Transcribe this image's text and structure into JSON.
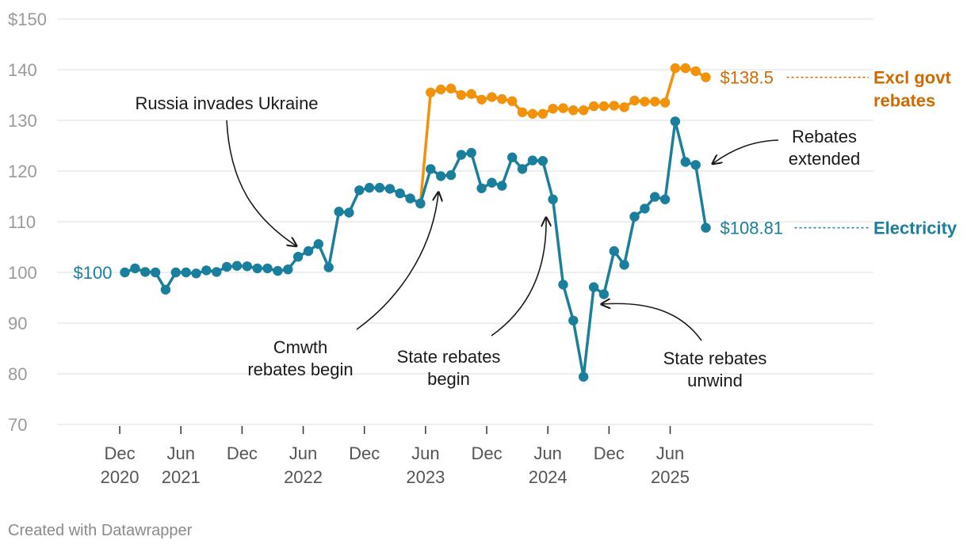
{
  "chart_data": {
    "type": "line",
    "title": "",
    "xlabel": "",
    "ylabel": "",
    "ylim": [
      70,
      150
    ],
    "y_ticks": [
      {
        "value": 150,
        "label": "$150"
      },
      {
        "value": 140,
        "label": "140"
      },
      {
        "value": 130,
        "label": "130"
      },
      {
        "value": 120,
        "label": "120"
      },
      {
        "value": 110,
        "label": "110"
      },
      {
        "value": 100,
        "label": "100"
      },
      {
        "value": 90,
        "label": "90"
      },
      {
        "value": 80,
        "label": "80"
      },
      {
        "value": 70,
        "label": "70"
      }
    ],
    "x_ticks": [
      {
        "index": -0.5,
        "line1": "Dec",
        "line2": "2020"
      },
      {
        "index": 5.5,
        "line1": "Jun",
        "line2": "2021"
      },
      {
        "index": 11.5,
        "line1": "Dec",
        "line2": ""
      },
      {
        "index": 17.5,
        "line1": "Jun",
        "line2": "2022"
      },
      {
        "index": 23.5,
        "line1": "Dec",
        "line2": ""
      },
      {
        "index": 29.5,
        "line1": "Jun",
        "line2": "2023"
      },
      {
        "index": 35.5,
        "line1": "Dec",
        "line2": ""
      },
      {
        "index": 41.5,
        "line1": "Jun",
        "line2": "2024"
      },
      {
        "index": 47.5,
        "line1": "Dec",
        "line2": ""
      },
      {
        "index": 53.5,
        "line1": "Jun",
        "line2": "2025"
      }
    ],
    "series": [
      {
        "name": "Electricity",
        "color": "#1a7f9c",
        "start_index": 0,
        "end_label": "$108.81",
        "start_label": "$100",
        "values": [
          100.0,
          100.8,
          100.1,
          100.0,
          96.6,
          100.0,
          100.0,
          99.8,
          100.4,
          100.1,
          101.1,
          101.3,
          101.2,
          100.8,
          100.8,
          100.3,
          100.6,
          103.1,
          104.2,
          105.6,
          101.0,
          112.0,
          111.8,
          116.2,
          116.7,
          116.7,
          116.5,
          115.6,
          114.6,
          113.6,
          120.4,
          119.0,
          119.2,
          123.2,
          123.6,
          116.6,
          117.7,
          117.1,
          122.7,
          120.4,
          122.1,
          122.0,
          114.4,
          97.6,
          90.5,
          79.4,
          97.1,
          95.7,
          104.2,
          101.5,
          111.0,
          112.6,
          114.9,
          114.4,
          129.8,
          121.8,
          121.2,
          108.81
        ]
      },
      {
        "name": "Excl govt rebates",
        "name_lines": [
          "Excl govt",
          "rebates"
        ],
        "color": "#f2910a",
        "label_color": "#d06a00",
        "start_index": 29,
        "end_label": "$138.5",
        "values": [
          113.6,
          135.5,
          136.1,
          136.3,
          135.0,
          135.2,
          134.1,
          134.6,
          134.2,
          133.8,
          131.6,
          131.3,
          131.3,
          132.3,
          132.4,
          132.0,
          132.0,
          132.8,
          132.8,
          132.9,
          132.6,
          133.9,
          133.7,
          133.7,
          133.5,
          140.3,
          140.3,
          139.7,
          138.5
        ]
      }
    ],
    "annotations": [
      {
        "id": "russia",
        "lines": [
          "Russia invades Ukraine"
        ]
      },
      {
        "id": "cmwth",
        "lines": [
          "Cmwth",
          "rebates begin"
        ]
      },
      {
        "id": "state-begin",
        "lines": [
          "State rebates",
          "begin"
        ]
      },
      {
        "id": "state-unwind",
        "lines": [
          "State rebates",
          "unwind"
        ]
      },
      {
        "id": "extended",
        "lines": [
          "Rebates",
          "extended"
        ]
      }
    ],
    "grid": true
  },
  "footer": {
    "credit": "Created with Datawrapper"
  }
}
